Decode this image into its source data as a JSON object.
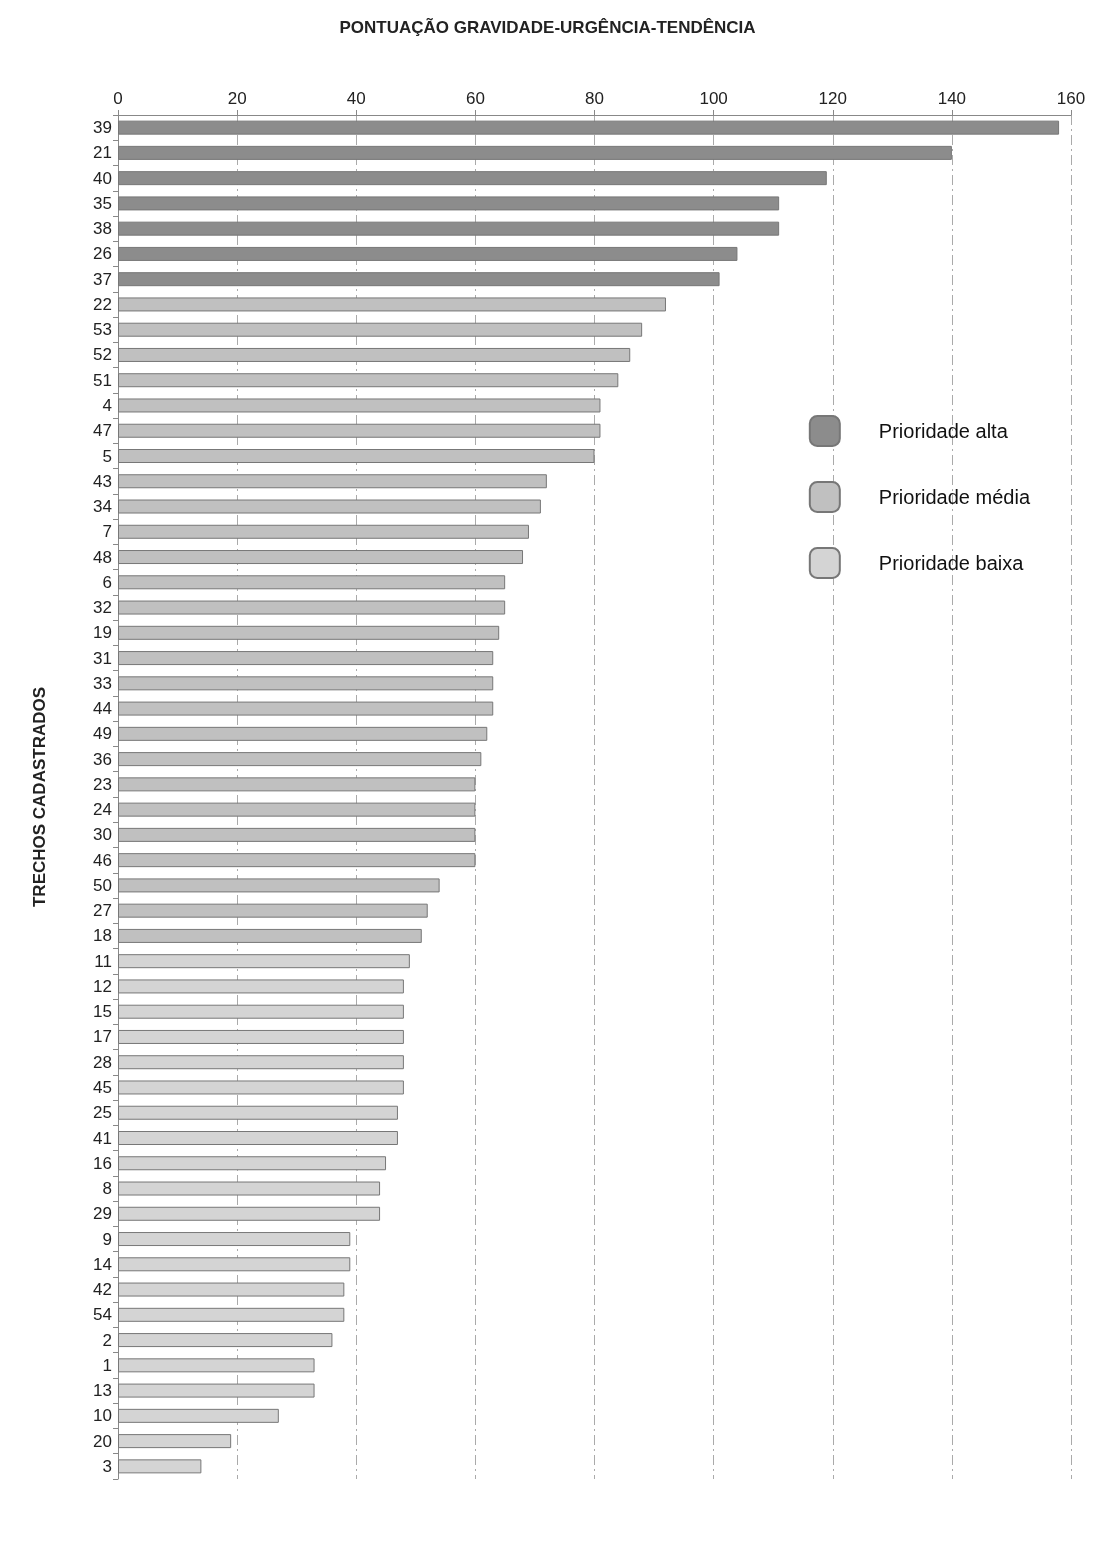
{
  "chart_data": {
    "type": "bar",
    "orientation": "horizontal",
    "title": "PONTUAÇÃO GRAVIDADE-URGÊNCIA-TENDÊNCIA",
    "ylabel": "TRECHOS CADASTRADOS",
    "categories": [
      "39",
      "21",
      "40",
      "35",
      "38",
      "26",
      "37",
      "22",
      "53",
      "52",
      "51",
      "4",
      "47",
      "5",
      "43",
      "34",
      "7",
      "48",
      "6",
      "32",
      "19",
      "31",
      "33",
      "44",
      "49",
      "36",
      "23",
      "24",
      "30",
      "46",
      "50",
      "27",
      "18",
      "11",
      "12",
      "15",
      "17",
      "28",
      "45",
      "25",
      "41",
      "16",
      "8",
      "29",
      "9",
      "14",
      "42",
      "54",
      "2",
      "1",
      "13",
      "10",
      "20",
      "3"
    ],
    "series": [
      {
        "name": "Prioridade alta",
        "color": "#8c8c8c",
        "values": [
          158,
          140,
          119,
          111,
          111,
          104,
          101,
          null,
          null,
          null,
          null,
          null,
          null,
          null,
          null,
          null,
          null,
          null,
          null,
          null,
          null,
          null,
          null,
          null,
          null,
          null,
          null,
          null,
          null,
          null,
          null,
          null,
          null,
          null,
          null,
          null,
          null,
          null,
          null,
          null,
          null,
          null,
          null,
          null,
          null,
          null,
          null,
          null,
          null,
          null,
          null,
          null,
          null,
          null
        ]
      },
      {
        "name": "Prioridade média",
        "color": "#c0c0c0",
        "values": [
          null,
          null,
          null,
          null,
          null,
          null,
          null,
          92,
          88,
          86,
          84,
          81,
          81,
          80,
          72,
          71,
          69,
          68,
          65,
          65,
          64,
          63,
          63,
          63,
          62,
          61,
          60,
          60,
          60,
          60,
          54,
          52,
          51,
          null,
          null,
          null,
          null,
          null,
          null,
          null,
          null,
          null,
          null,
          null,
          null,
          null,
          null,
          null,
          null,
          null,
          null,
          null,
          null,
          null
        ]
      },
      {
        "name": "Prioridade baixa",
        "color": "#d4d4d4",
        "values": [
          null,
          null,
          null,
          null,
          null,
          null,
          null,
          null,
          null,
          null,
          null,
          null,
          null,
          null,
          null,
          null,
          null,
          null,
          null,
          null,
          null,
          null,
          null,
          null,
          null,
          null,
          null,
          null,
          null,
          null,
          null,
          null,
          null,
          49,
          48,
          48,
          48,
          48,
          48,
          47,
          47,
          45,
          44,
          44,
          39,
          39,
          38,
          38,
          36,
          33,
          33,
          27,
          19,
          14
        ]
      }
    ],
    "xlim": [
      0,
      160
    ],
    "xticks": [
      0,
      20,
      40,
      60,
      80,
      100,
      120,
      140,
      160
    ],
    "grid": "x",
    "legend": "top right"
  }
}
